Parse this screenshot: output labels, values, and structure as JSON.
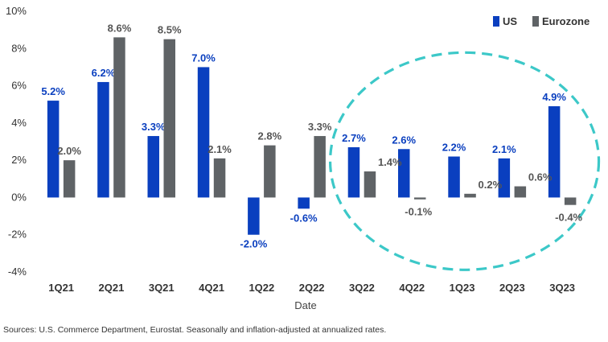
{
  "chart_data": {
    "type": "bar",
    "xlabel": "Date",
    "ylabel": "",
    "categories": [
      "1Q21",
      "2Q21",
      "3Q21",
      "4Q21",
      "1Q22",
      "2Q22",
      "3Q22",
      "4Q22",
      "1Q23",
      "2Q23",
      "3Q23"
    ],
    "series": [
      {
        "name": "US",
        "color": "#0a3fbf",
        "values": [
          5.2,
          6.2,
          3.3,
          7.0,
          -2.0,
          -0.6,
          2.7,
          2.6,
          2.2,
          2.1,
          4.9
        ],
        "labels": [
          "5.2%",
          "6.2%",
          "3.3%",
          "7.0%",
          "-2.0%",
          "-0.6%",
          "2.7%",
          "2.6%",
          "2.2%",
          "2.1%",
          "4.9%"
        ]
      },
      {
        "name": "Eurozone",
        "color": "#5f6366",
        "values": [
          2.0,
          8.6,
          8.5,
          2.1,
          2.8,
          3.3,
          1.4,
          -0.1,
          0.2,
          0.6,
          -0.4
        ],
        "labels": [
          "2.0%",
          "8.6%",
          "8.5%",
          "2.1%",
          "2.8%",
          "3.3%",
          "1.4%",
          "-0.1%",
          "0.2%",
          "0.6%",
          "-0.4%"
        ]
      }
    ],
    "ylim": [
      -4,
      10
    ],
    "yticks": [
      -4,
      -2,
      0,
      2,
      4,
      6,
      8,
      10
    ],
    "ytick_labels": [
      "-4%",
      "-2%",
      "0%",
      "2%",
      "4%",
      "6%",
      "8%",
      "10%"
    ],
    "grid": false,
    "legend": "top-right",
    "annotation": {
      "shape": "dashed-ellipse",
      "color": "#3cc8c8",
      "covers": [
        "3Q22",
        "4Q22",
        "1Q23",
        "2Q23",
        "3Q23"
      ]
    },
    "source": "Sources: U.S. Commerce Department, Eurostat. Seasonally and inflation-adjusted at annualized rates."
  }
}
